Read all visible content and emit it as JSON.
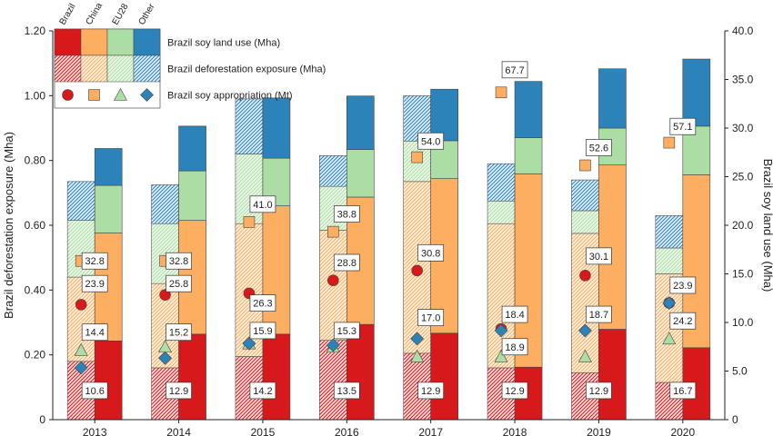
{
  "chart_data": {
    "type": "bar",
    "title": "",
    "categories": [
      "2013",
      "2014",
      "2015",
      "2016",
      "2017",
      "2018",
      "2019",
      "2020"
    ],
    "xlabel": "",
    "ylabel_left": "Brazil deforestation exposure (Mha)",
    "ylabel_right": "Brazil soy land use (Mha)",
    "ylim_left": [
      0,
      1.2
    ],
    "ylim_right": [
      0,
      40
    ],
    "left_ticks": [
      "0",
      "0.20",
      "0.40",
      "0.60",
      "0.80",
      "1.00",
      "1.20"
    ],
    "left_tick_values": [
      0,
      0.2,
      0.4,
      0.6,
      0.8,
      1.0,
      1.2
    ],
    "right_ticks": [
      "0",
      "5.0",
      "10.0",
      "15.0",
      "20.0",
      "25.0",
      "30.0",
      "35.0",
      "40.0"
    ],
    "right_tick_values": [
      0,
      5,
      10,
      15,
      20,
      25,
      30,
      35,
      40
    ],
    "destinations": [
      "Brazil",
      "China",
      "EU28",
      "Other"
    ],
    "colors": {
      "Brazil": "#d7191c",
      "China": "#fdae61",
      "EU28": "#abdda4",
      "Other": "#2b83ba"
    },
    "deforestation_exposure_Mha": [
      {
        "name": "Brazil",
        "values": [
          0.18,
          0.16,
          0.195,
          0.245,
          0.205,
          0.16,
          0.145,
          0.115
        ]
      },
      {
        "name": "China",
        "values": [
          0.26,
          0.26,
          0.41,
          0.34,
          0.53,
          0.445,
          0.43,
          0.335
        ]
      },
      {
        "name": "EU28",
        "values": [
          0.175,
          0.185,
          0.215,
          0.135,
          0.125,
          0.07,
          0.07,
          0.08
        ]
      },
      {
        "name": "Other",
        "values": [
          0.12,
          0.12,
          0.17,
          0.095,
          0.14,
          0.115,
          0.095,
          0.1
        ]
      }
    ],
    "soy_land_use_Mha": [
      {
        "name": "Brazil",
        "values": [
          8.1,
          8.8,
          8.8,
          9.8,
          8.9,
          5.4,
          9.3,
          7.4
        ]
      },
      {
        "name": "China",
        "values": [
          11.1,
          11.7,
          13.2,
          13.1,
          15.9,
          19.9,
          16.9,
          17.8
        ]
      },
      {
        "name": "EU28",
        "values": [
          4.9,
          5.1,
          4.9,
          4.9,
          3.9,
          3.7,
          3.8,
          5.0
        ]
      },
      {
        "name": "Other",
        "values": [
          3.8,
          4.6,
          6.2,
          5.5,
          5.3,
          5.8,
          6.1,
          6.9
        ]
      }
    ],
    "soy_appropriation_Mt": [
      {
        "name": "Brazil",
        "values": [
          23.9,
          25.8,
          26.3,
          28.8,
          30.8,
          18.4,
          30.1,
          23.9
        ]
      },
      {
        "name": "China",
        "values": [
          32.8,
          32.8,
          41.0,
          38.8,
          54.0,
          67.7,
          52.6,
          57.1
        ]
      },
      {
        "name": "EU28",
        "values": [
          14.4,
          15.2,
          15.9,
          15.3,
          12.9,
          12.9,
          12.9,
          16.7
        ]
      },
      {
        "name": "Other",
        "values": [
          10.6,
          12.9,
          14.2,
          13.5,
          17.0,
          18.9,
          18.7,
          24.2
        ]
      }
    ],
    "marker_positions_Mha": [
      {
        "name": "Brazil",
        "values": [
          0.355,
          0.385,
          0.39,
          0.43,
          0.46,
          0.28,
          0.445,
          0.36
        ]
      },
      {
        "name": "China",
        "values": [
          0.49,
          0.49,
          0.61,
          0.58,
          0.81,
          1.01,
          0.785,
          0.855
        ]
      },
      {
        "name": "EU28",
        "values": [
          0.215,
          0.225,
          0.235,
          0.225,
          0.195,
          0.195,
          0.195,
          0.25
        ]
      },
      {
        "name": "Other",
        "values": [
          0.16,
          0.19,
          0.235,
          0.23,
          0.25,
          0.275,
          0.275,
          0.36
        ]
      }
    ],
    "data_labels": [
      [
        [
          "32.8",
          0.49
        ],
        [
          "23.9",
          0.42
        ],
        [
          "14.4",
          0.27
        ],
        [
          "10.6",
          0.09
        ]
      ],
      [
        [
          "32.8",
          0.49
        ],
        [
          "25.8",
          0.42
        ],
        [
          "15.2",
          0.27
        ],
        [
          "12.9",
          0.09
        ]
      ],
      [
        [
          "41.0",
          0.665
        ],
        [
          "26.3",
          0.36
        ],
        [
          "15.9",
          0.275
        ],
        [
          "14.2",
          0.09
        ]
      ],
      [
        [
          "38.8",
          0.635
        ],
        [
          "28.8",
          0.485
        ],
        [
          "15.3",
          0.275
        ],
        [
          "13.5",
          0.09
        ]
      ],
      [
        [
          "54.0",
          0.86
        ],
        [
          "30.8",
          0.515
        ],
        [
          "17.0",
          0.315
        ],
        [
          "12.9",
          0.09
        ]
      ],
      [
        [
          "67.7",
          1.08
        ],
        [
          "18.4",
          0.325
        ],
        [
          "18.9",
          0.225
        ],
        [
          "12.9",
          0.09
        ]
      ],
      [
        [
          "52.6",
          0.84
        ],
        [
          "30.1",
          0.505
        ],
        [
          "18.7",
          0.325
        ],
        [
          "12.9",
          0.09
        ]
      ],
      [
        [
          "57.1",
          0.905
        ],
        [
          "23.9",
          0.415
        ],
        [
          "24.2",
          0.305
        ],
        [
          "16.7",
          0.09
        ]
      ]
    ],
    "legend": {
      "headers": [
        "Brazil",
        "China",
        "EU28",
        "Other"
      ],
      "rows": [
        "Brazil soy land use (Mha)",
        "Brazil deforestation exposure (Mha)",
        "Brazil soy appropriation (Mt)"
      ],
      "placement": "top-left"
    }
  }
}
